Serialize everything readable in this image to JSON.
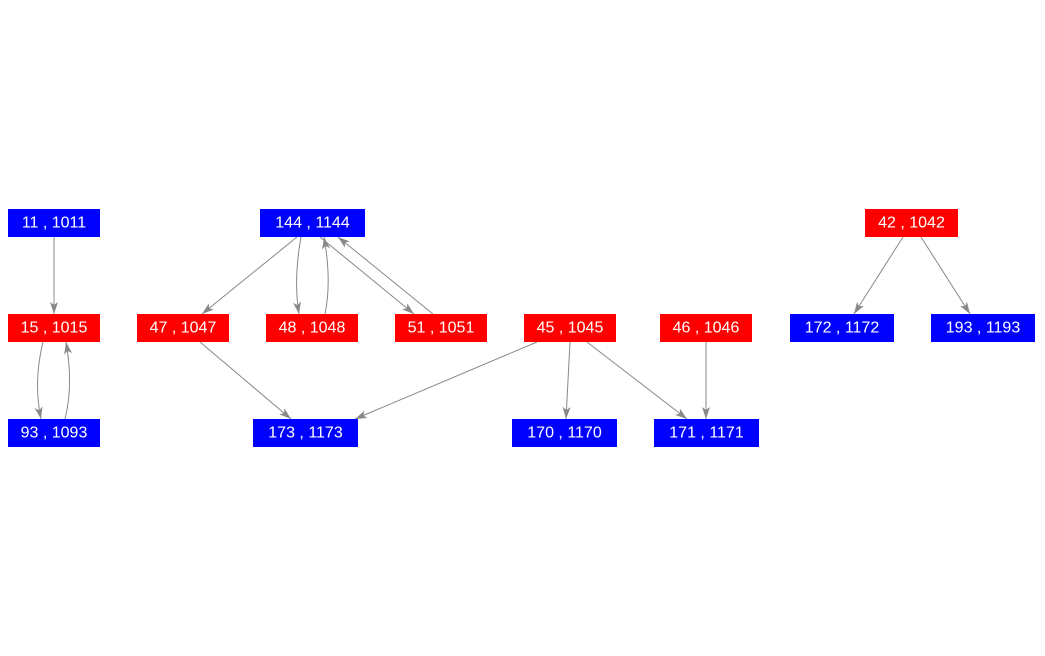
{
  "nodes": [
    {
      "label": "11 , 1011"
    },
    {
      "label": "144 , 1144"
    },
    {
      "label": "42 , 1042"
    },
    {
      "label": "15 , 1015"
    },
    {
      "label": "47 , 1047"
    },
    {
      "label": "48 , 1048"
    },
    {
      "label": "51 , 1051"
    },
    {
      "label": "45 , 1045"
    },
    {
      "label": "46 , 1046"
    },
    {
      "label": "172 , 1172"
    },
    {
      "label": "193 , 1193"
    },
    {
      "label": "93 , 1093"
    },
    {
      "label": "173 , 1173"
    },
    {
      "label": "170 , 1170"
    },
    {
      "label": "171 , 1171"
    }
  ]
}
